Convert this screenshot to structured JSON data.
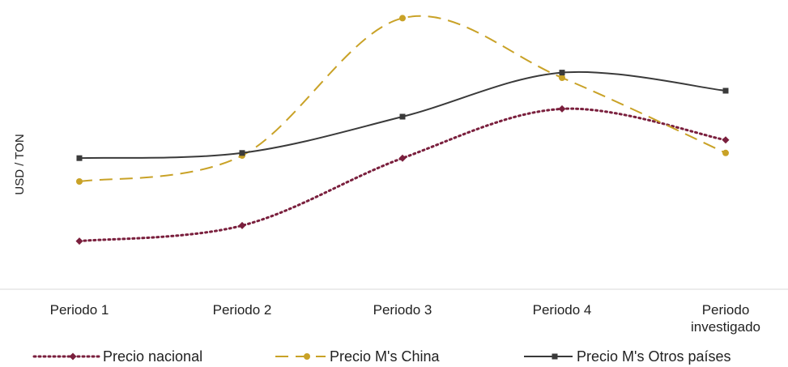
{
  "chart_data": {
    "type": "line",
    "ylabel": "USD / TON",
    "xlabel": "",
    "title": "",
    "categories": [
      [
        "Periodo 1"
      ],
      [
        "Periodo 2"
      ],
      [
        "Periodo 3"
      ],
      [
        "Periodo 4"
      ],
      [
        "Periodo",
        "investigado"
      ]
    ],
    "y_axis_visible": false,
    "grid": false,
    "legend_position": "bottom",
    "ylim": [
      0,
      100
    ],
    "series": [
      {
        "name": "Precio nacional",
        "color": "#7a1f3d",
        "line_style": "dotted",
        "marker": "diamond",
        "values": [
          12,
          18,
          44,
          63,
          51
        ]
      },
      {
        "name": "Precio M's China",
        "color": "#c9a227",
        "line_style": "dashed",
        "marker": "circle",
        "values": [
          35,
          45,
          98,
          75,
          46
        ]
      },
      {
        "name": "Precio M's Otros países",
        "color": "#3a3a3a",
        "line_style": "solid",
        "marker": "square",
        "values": [
          44,
          46,
          60,
          77,
          70
        ]
      }
    ]
  }
}
